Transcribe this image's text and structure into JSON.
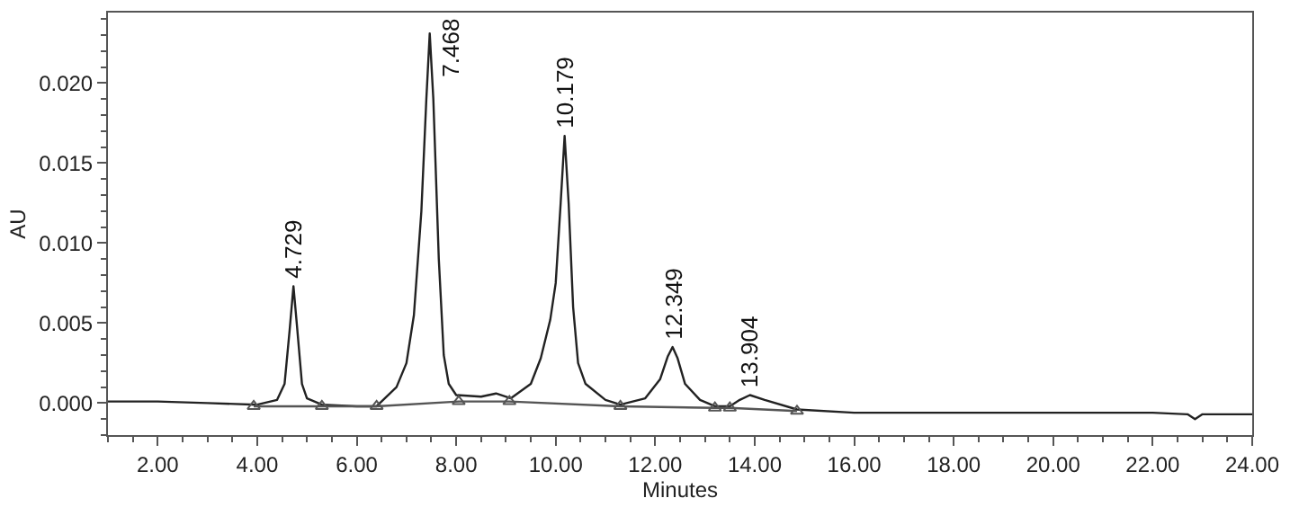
{
  "chart_data": {
    "type": "line",
    "xlabel": "Minutes",
    "ylabel": "AU",
    "xlim": [
      1,
      24
    ],
    "ylim": [
      -0.002,
      0.0244
    ],
    "xticks": [
      {
        "value": 2,
        "label": "2.00"
      },
      {
        "value": 4,
        "label": "4.00"
      },
      {
        "value": 6,
        "label": "6.00"
      },
      {
        "value": 8,
        "label": "8.00"
      },
      {
        "value": 10,
        "label": "10.00"
      },
      {
        "value": 12,
        "label": "12.00"
      },
      {
        "value": 14,
        "label": "14.00"
      },
      {
        "value": 16,
        "label": "16.00"
      },
      {
        "value": 18,
        "label": "18.00"
      },
      {
        "value": 20,
        "label": "20.00"
      },
      {
        "value": 22,
        "label": "22.00"
      },
      {
        "value": 24,
        "label": "24.00"
      }
    ],
    "yticks": [
      {
        "value": 0,
        "label": "0.000"
      },
      {
        "value": 0.005,
        "label": "0.005"
      },
      {
        "value": 0.01,
        "label": "0.010"
      },
      {
        "value": 0.015,
        "label": "0.015"
      },
      {
        "value": 0.02,
        "label": "0.020"
      }
    ],
    "series": [
      {
        "color": "#222222",
        "marker": "none",
        "x": [
          1.0,
          2.0,
          3.0,
          4.0,
          4.4,
          4.55,
          4.65,
          4.729,
          4.8,
          4.9,
          5.0,
          5.3,
          6.0,
          6.4,
          6.8,
          7.0,
          7.15,
          7.3,
          7.4,
          7.468,
          7.54,
          7.65,
          7.75,
          7.85,
          8.0,
          8.5,
          8.8,
          9.1,
          9.5,
          9.7,
          9.89,
          10.0,
          10.1,
          10.179,
          10.26,
          10.35,
          10.45,
          10.6,
          11.0,
          11.3,
          11.8,
          12.1,
          12.25,
          12.349,
          12.45,
          12.6,
          12.9,
          13.2,
          13.5,
          13.7,
          13.904,
          14.2,
          14.85,
          16.0,
          18.0,
          20.0,
          22.0,
          22.7,
          22.85,
          23.0,
          24.0
        ],
        "values": [
          0.0001,
          0.0001,
          0.0,
          -0.0001,
          0.0002,
          0.0012,
          0.0045,
          0.0073,
          0.0048,
          0.0012,
          0.0003,
          -0.0001,
          -0.0002,
          -0.0002,
          0.001,
          0.0025,
          0.0055,
          0.012,
          0.019,
          0.0231,
          0.019,
          0.009,
          0.003,
          0.0012,
          0.0005,
          0.0004,
          0.0006,
          0.0003,
          0.0012,
          0.0028,
          0.0052,
          0.0075,
          0.0125,
          0.0167,
          0.0125,
          0.006,
          0.0025,
          0.0012,
          0.0002,
          -0.0001,
          0.0003,
          0.0015,
          0.0029,
          0.0035,
          0.0028,
          0.0012,
          0.0002,
          -0.0002,
          -0.0002,
          0.0002,
          0.0005,
          0.0002,
          -0.0004,
          -0.0006,
          -0.0006,
          -0.0006,
          -0.0006,
          -0.0007,
          -0.001,
          -0.0007,
          -0.0007
        ]
      },
      {
        "color": "#555555",
        "marker": "triangle",
        "x": [
          3.93,
          5.3,
          6.4,
          8.05,
          9.07,
          11.3,
          13.2,
          13.5,
          14.85
        ],
        "values": [
          -0.0002,
          -0.0002,
          -0.0002,
          0.0001,
          0.0001,
          -0.0002,
          -0.0003,
          -0.0003,
          -0.0005
        ]
      }
    ],
    "annotations": [
      {
        "text": "4.729",
        "x": 4.729,
        "y": 0.0073
      },
      {
        "text": "7.468",
        "x": 7.468,
        "y": 0.0231
      },
      {
        "text": "10.179",
        "x": 10.179,
        "y": 0.0167
      },
      {
        "text": "12.349",
        "x": 12.349,
        "y": 0.0035
      },
      {
        "text": "13.904",
        "x": 13.904,
        "y": 0.0005
      }
    ]
  }
}
